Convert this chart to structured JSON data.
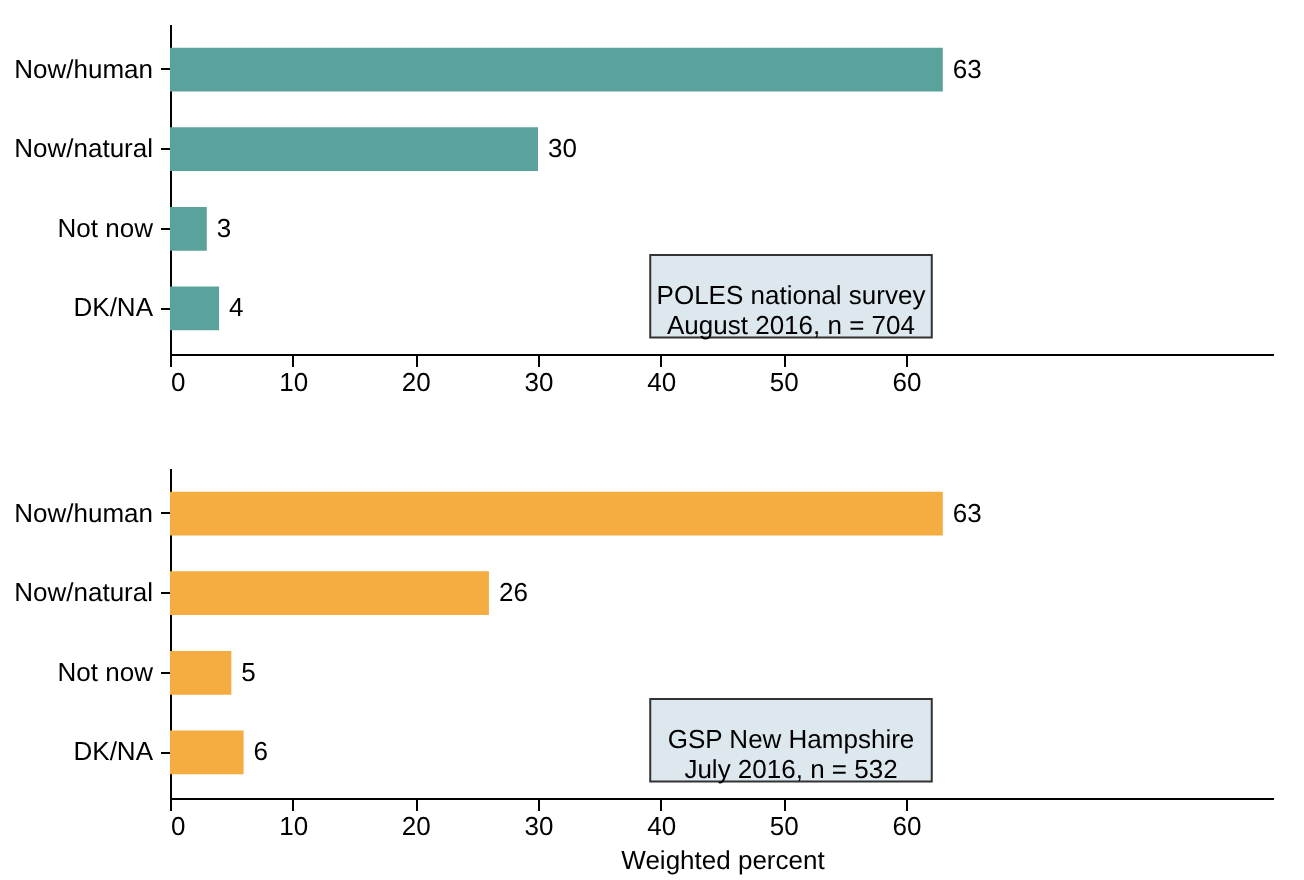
{
  "chart_data": [
    {
      "type": "bar",
      "orientation": "horizontal",
      "categories": [
        "Now/human",
        "Now/natural",
        "Not now",
        "DK/NA"
      ],
      "values": [
        63,
        30,
        3,
        4
      ],
      "color": "#5aa39c",
      "data_labels": true,
      "xlim": [
        0,
        90
      ],
      "xticks": [
        0,
        10,
        20,
        30,
        40,
        50,
        60
      ],
      "annotations": [
        "POLES national survey\nAugust 2016, n = 704"
      ]
    },
    {
      "type": "bar",
      "orientation": "horizontal",
      "categories": [
        "Now/human",
        "Now/natural",
        "Not now",
        "DK/NA"
      ],
      "values": [
        63,
        26,
        5,
        6
      ],
      "color": "#f5ad41",
      "data_labels": true,
      "xlim": [
        0,
        90
      ],
      "xticks": [
        0,
        10,
        20,
        30,
        40,
        50,
        60
      ],
      "xlabel": "Weighted percent",
      "annotations": [
        "GSP New Hampshire\nJuly 2016, n =  532"
      ]
    }
  ]
}
